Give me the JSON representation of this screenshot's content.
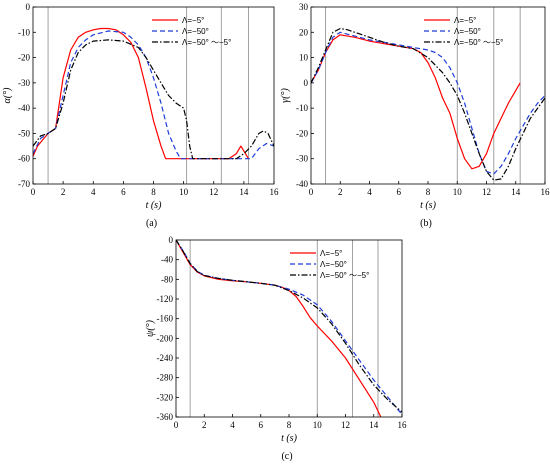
{
  "chart_data": [
    {
      "panel": "(a)",
      "type": "line",
      "xlabel": "t (s)",
      "ylabel": "α(°)",
      "xlim": [
        0,
        16
      ],
      "ylim": [
        -70,
        0
      ],
      "xticks": [
        "0",
        "2",
        "4",
        "6",
        "8",
        "10",
        "12",
        "14",
        "16"
      ],
      "yticks": [
        "0",
        "-10",
        "-20",
        "-30",
        "-40",
        "-50",
        "-60",
        "-70"
      ],
      "vlines": [
        1,
        10.2,
        12.5,
        14.3
      ],
      "legend_position": "top-right",
      "series": [
        {
          "name": "Λ=−5°",
          "color": "#ff0000",
          "dash": "solid",
          "x": [
            0,
            0.3,
            1,
            1.5,
            2,
            2.5,
            3,
            3.5,
            4,
            4.5,
            5,
            5.5,
            6,
            6.5,
            7,
            7.5,
            8,
            8.5,
            8.8,
            9,
            10,
            11,
            12,
            13,
            13.5,
            13.8,
            14,
            14.3
          ],
          "y": [
            -59,
            -55,
            -50,
            -48,
            -28,
            -17,
            -12,
            -10,
            -9,
            -8.5,
            -8.5,
            -9,
            -11,
            -14,
            -20,
            -32,
            -45,
            -55,
            -60,
            -60,
            -60,
            -60,
            -60,
            -60,
            -58,
            -55,
            -57,
            -60
          ]
        },
        {
          "name": "Λ=−50°",
          "color": "#1f3cd8",
          "dash": "5,3",
          "x": [
            0,
            0.5,
            1,
            1.5,
            2,
            2.5,
            3,
            3.5,
            4,
            5,
            6,
            6.5,
            7,
            7.5,
            8,
            8.5,
            9,
            9.5,
            9.8,
            10,
            11,
            12,
            13,
            14,
            14.5,
            15,
            15.5,
            16
          ],
          "y": [
            -58,
            -52,
            -50,
            -48,
            -35,
            -22,
            -16,
            -13,
            -11,
            -9.5,
            -10,
            -12,
            -15,
            -20,
            -28,
            -38,
            -50,
            -57,
            -60,
            -60,
            -60,
            -60,
            -60,
            -60,
            -60,
            -56,
            -54,
            -55
          ]
        },
        {
          "name": "Λ=−50° ～−5°",
          "color": "#000000",
          "dash": "6,2,1.5,2",
          "x": [
            0,
            0.5,
            1,
            1.5,
            2,
            2.5,
            3,
            3.5,
            4,
            5,
            6,
            7,
            7.5,
            8,
            8.5,
            9,
            9.5,
            10,
            10.2,
            10.4,
            10.6,
            11,
            12,
            13,
            13.5,
            14,
            14.5,
            15,
            15.3,
            15.6,
            16
          ],
          "y": [
            -55,
            -51,
            -50,
            -48,
            -38,
            -25,
            -18,
            -15,
            -13.5,
            -13,
            -13.5,
            -16,
            -20,
            -25,
            -30,
            -35,
            -38,
            -40,
            -45,
            -55,
            -60,
            -60,
            -60,
            -60,
            -60,
            -58,
            -55,
            -50,
            -49,
            -50,
            -55
          ]
        }
      ]
    },
    {
      "panel": "(b)",
      "type": "line",
      "xlabel": "t (s)",
      "ylabel": "γ(°)",
      "xlim": [
        0,
        16
      ],
      "ylim": [
        -40,
        30
      ],
      "xticks": [
        "0",
        "2",
        "4",
        "6",
        "8",
        "10",
        "12",
        "14",
        "16"
      ],
      "yticks": [
        "30",
        "20",
        "10",
        "0",
        "-10",
        "-20",
        "-30",
        "-40"
      ],
      "vlines": [
        1,
        10,
        12.5,
        14.3
      ],
      "legend_position": "top-right",
      "series": [
        {
          "name": "Λ=−5°",
          "color": "#ff0000",
          "dash": "solid",
          "x": [
            0,
            0.5,
            1,
            1.5,
            2,
            3,
            4,
            5,
            6,
            7,
            7.5,
            8,
            8.5,
            9,
            9.5,
            10,
            10.5,
            11,
            11.5,
            12,
            12.5,
            13,
            13.5,
            14,
            14.3
          ],
          "y": [
            0,
            5,
            12,
            17,
            19,
            18,
            16.5,
            15.5,
            14.5,
            13.5,
            12,
            8,
            2,
            -6,
            -12,
            -22,
            -30,
            -34,
            -33,
            -28,
            -20,
            -14,
            -8,
            -3,
            0
          ]
        },
        {
          "name": "Λ=−50°",
          "color": "#1f3cd8",
          "dash": "5,3",
          "x": [
            0,
            0.5,
            1,
            1.5,
            2,
            3,
            4,
            5,
            6,
            7,
            8,
            8.5,
            9,
            9.5,
            10,
            10.5,
            11,
            11.5,
            12,
            12.5,
            13,
            13.5,
            14,
            14.5,
            15,
            15.5,
            16
          ],
          "y": [
            0,
            5,
            12,
            18,
            20,
            18.5,
            17,
            16,
            15,
            14,
            13,
            12,
            10,
            6,
            0,
            -8,
            -18,
            -28,
            -35,
            -36,
            -33,
            -28,
            -22,
            -17,
            -12,
            -8,
            -5
          ]
        },
        {
          "name": "Λ=−50° ～−5°",
          "color": "#000000",
          "dash": "6,2,1.5,2",
          "x": [
            0,
            0.5,
            1,
            1.5,
            2,
            2.5,
            3,
            4,
            5,
            6,
            7,
            8,
            8.5,
            9,
            9.5,
            10,
            10.5,
            11,
            11.5,
            12,
            12.5,
            13,
            13.5,
            14,
            14.5,
            15,
            15.5,
            16
          ],
          "y": [
            0,
            6,
            13,
            20,
            21.5,
            21,
            20,
            18,
            16,
            14.5,
            13.5,
            10,
            7,
            4,
            0,
            -5,
            -12,
            -20,
            -28,
            -35,
            -38.5,
            -38,
            -33,
            -26,
            -20,
            -14,
            -10,
            -6
          ]
        }
      ]
    },
    {
      "panel": "(c)",
      "type": "line",
      "xlabel": "t (s)",
      "ylabel": "ψ(°)",
      "xlim": [
        0,
        16
      ],
      "ylim": [
        -360,
        0
      ],
      "xticks": [
        "0",
        "2",
        "4",
        "6",
        "8",
        "10",
        "12",
        "14",
        "16"
      ],
      "yticks": [
        "0",
        "-40",
        "-80",
        "-120",
        "-160",
        "-200",
        "-240",
        "-280",
        "-320",
        "-360"
      ],
      "vlines": [
        1,
        10,
        12.5,
        14.3
      ],
      "legend_position": "top-right",
      "series": [
        {
          "name": "Λ=−5°",
          "color": "#ff0000",
          "dash": "solid",
          "x": [
            0,
            0.5,
            1,
            1.5,
            2,
            3,
            4,
            5,
            6,
            7,
            7.5,
            8,
            8.5,
            9,
            9.5,
            10,
            11,
            12,
            13,
            14,
            14.5
          ],
          "y": [
            0,
            -25,
            -50,
            -65,
            -73,
            -80,
            -83,
            -85,
            -88,
            -92,
            -96,
            -103,
            -115,
            -135,
            -158,
            -175,
            -205,
            -240,
            -285,
            -330,
            -360
          ]
        },
        {
          "name": "Λ=−50°",
          "color": "#1f3cd8",
          "dash": "5,3",
          "x": [
            0,
            0.5,
            1,
            1.5,
            2,
            3,
            4,
            5,
            6,
            7,
            8,
            9,
            10,
            11,
            12,
            13,
            14,
            15,
            16
          ],
          "y": [
            0,
            -22,
            -47,
            -63,
            -72,
            -78,
            -82,
            -85,
            -88,
            -92,
            -100,
            -112,
            -132,
            -165,
            -205,
            -245,
            -285,
            -320,
            -355
          ]
        },
        {
          "name": "Λ=−50° ～−5°",
          "color": "#000000",
          "dash": "6,2,1.5,2",
          "x": [
            0,
            0.5,
            1,
            1.5,
            2,
            3,
            4,
            5,
            6,
            7,
            8,
            9,
            10,
            11,
            12,
            13,
            14,
            15,
            16
          ],
          "y": [
            0,
            -23,
            -48,
            -64,
            -72,
            -78,
            -82,
            -85,
            -88,
            -92,
            -103,
            -118,
            -138,
            -170,
            -210,
            -255,
            -295,
            -325,
            -350
          ]
        }
      ]
    }
  ]
}
